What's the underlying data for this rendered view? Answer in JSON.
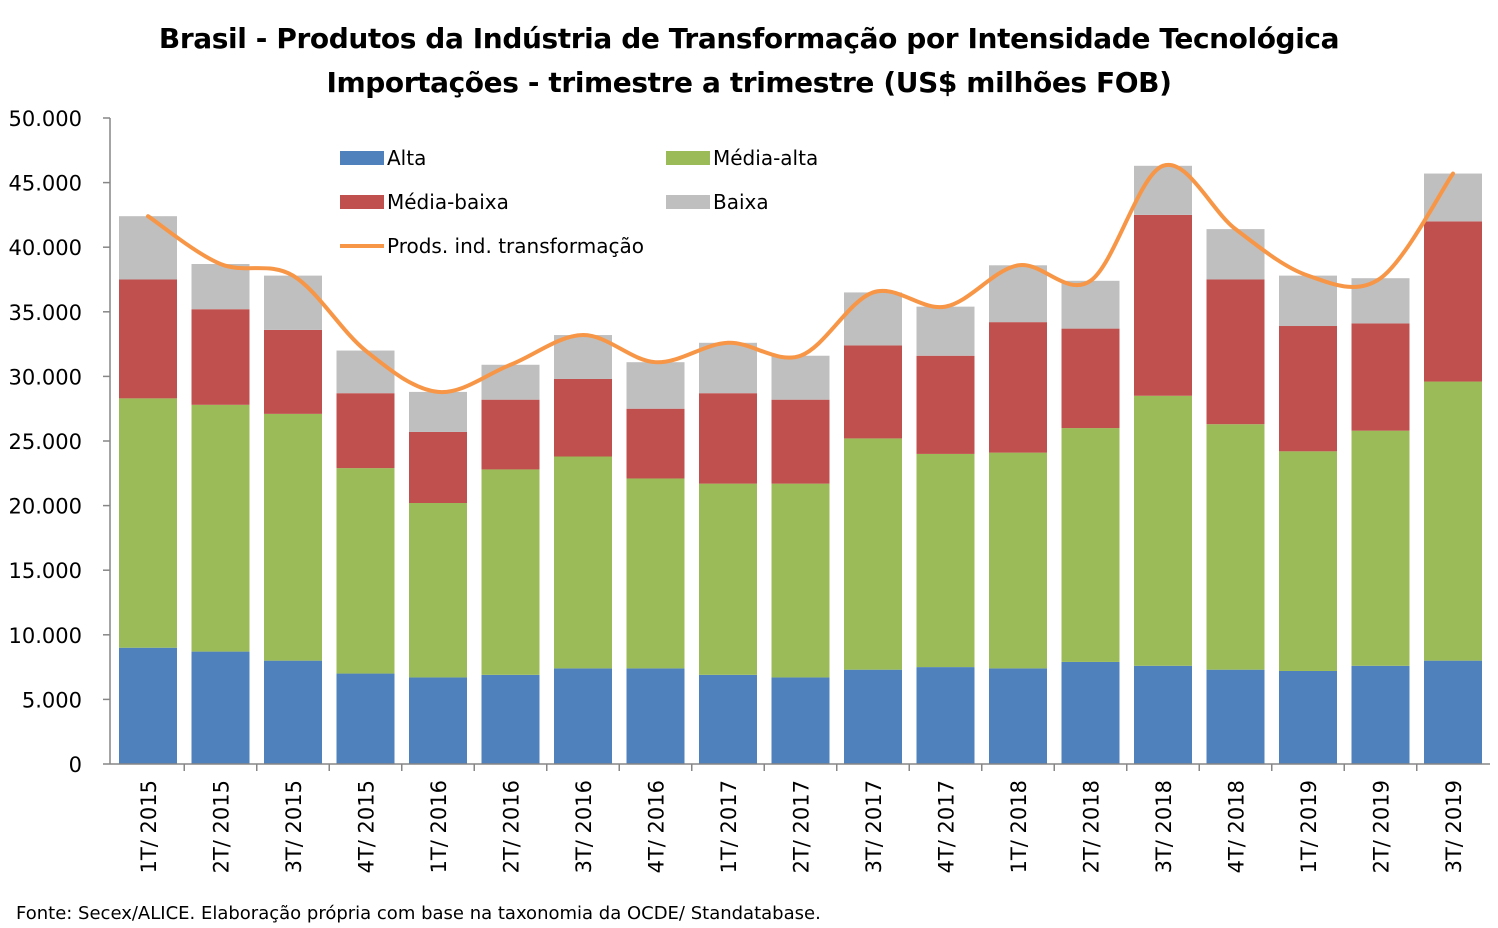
{
  "chart_data": {
    "type": "bar",
    "stacked": true,
    "title": "Brasil - Produtos da Indústria de Transformação por Intensidade Tecnológica",
    "subtitle": "Importações - trimestre a trimestre (US$ milhões FOB)",
    "categories": [
      "1T/ 2015",
      "2T/ 2015",
      "3T/ 2015",
      "4T/ 2015",
      "1T/ 2016",
      "2T/ 2016",
      "3T/ 2016",
      "4T/ 2016",
      "1T/ 2017",
      "2T/ 2017",
      "3T/ 2017",
      "4T/ 2017",
      "1T/ 2018",
      "2T/ 2018",
      "3T/ 2018",
      "4T/ 2018",
      "1T/ 2019",
      "2T/ 2019",
      "3T/ 2019"
    ],
    "series": [
      {
        "name": "Alta",
        "color": "#4F81BD",
        "values": [
          9000,
          8700,
          8000,
          7000,
          6700,
          6900,
          7400,
          7400,
          6900,
          6700,
          7300,
          7500,
          7400,
          7900,
          7600,
          7300,
          7200,
          7600,
          8000
        ]
      },
      {
        "name": "Média-alta",
        "color": "#9BBB59",
        "values": [
          19300,
          19100,
          19100,
          15900,
          13500,
          15900,
          16400,
          14700,
          14800,
          15000,
          17900,
          16500,
          16700,
          18100,
          20900,
          19000,
          17000,
          18200,
          21600
        ]
      },
      {
        "name": "Média-baixa",
        "color": "#C0504D",
        "values": [
          9200,
          7400,
          6500,
          5800,
          5500,
          5400,
          6000,
          5400,
          7000,
          6500,
          7200,
          7600,
          10100,
          7700,
          14000,
          11200,
          9700,
          8300,
          12400
        ]
      },
      {
        "name": "Baixa",
        "color": "#BFBFBF",
        "values": [
          4900,
          3500,
          4200,
          3300,
          3100,
          2700,
          3400,
          3600,
          3900,
          3400,
          4100,
          3800,
          4400,
          3700,
          3800,
          3900,
          3900,
          3500,
          3700
        ]
      }
    ],
    "line": {
      "name": "Prods. ind. transformação",
      "color": "#F79646",
      "values": [
        42400,
        38700,
        37800,
        32000,
        28800,
        30900,
        33200,
        31100,
        32600,
        31600,
        36500,
        35400,
        38600,
        37400,
        46300,
        41400,
        37800,
        37600,
        45700
      ]
    },
    "yticks": [
      "0",
      "5.000",
      "10.000",
      "15.000",
      "20.000",
      "25.000",
      "30.000",
      "35.000",
      "40.000",
      "45.000",
      "50.000"
    ],
    "ylim": [
      0,
      50000
    ],
    "xlabel": "",
    "ylabel": "",
    "grid": false,
    "legend_position": "top-left-inside"
  },
  "source": "Fonte: Secex/ALICE. Elaboração própria com base na taxonomia da OCDE/ Standatabase."
}
